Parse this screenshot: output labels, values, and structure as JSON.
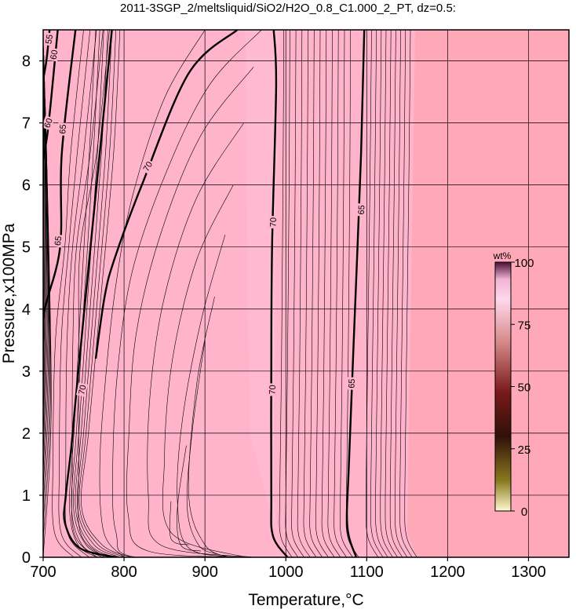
{
  "chart_data": {
    "type": "contour",
    "title": "2011-3SGP_2/meltsliquid/SiO2/H2O_0.8_C1.000_2_PT, dz=0.5:",
    "xlabel": "Temperature,°C",
    "ylabel": "Pressure,x100MPa",
    "xlim": [
      700,
      1350
    ],
    "ylim": [
      0,
      8.5
    ],
    "x_ticks": [
      "700",
      "800",
      "900",
      "1000",
      "1100",
      "1200",
      "1300"
    ],
    "y_ticks": [
      "0",
      "1",
      "2",
      "3",
      "4",
      "5",
      "6",
      "7",
      "8"
    ],
    "grid": true,
    "colorbar": {
      "label": "wt%",
      "range": [
        0,
        100
      ],
      "ticks": [
        "0",
        "25",
        "50",
        "75",
        "100"
      ],
      "placement": "right-middle"
    },
    "major_contours": [
      {
        "level": "70",
        "points": [
          [
            785,
            8.5
          ],
          [
            745,
            3.2
          ],
          [
            735,
            1.8
          ],
          [
            728,
            1.0
          ],
          [
            727,
            0.55
          ],
          [
            745,
            0.15
          ],
          [
            790,
            0
          ]
        ],
        "labels": [
          {
            "text": "70",
            "x": 748,
            "y": 2.7,
            "angle": -78
          }
        ]
      },
      {
        "level": "70",
        "points": [
          [
            940,
            8.5
          ],
          [
            880,
            7.8
          ],
          [
            822,
            6.0
          ],
          [
            788,
            4.8
          ],
          [
            776,
            4.2
          ],
          [
            765,
            3.2
          ]
        ],
        "labels": [
          {
            "text": "70",
            "x": 829,
            "y": 6.3,
            "angle": -60
          }
        ]
      },
      {
        "level": "70",
        "points": [
          [
            985,
            8.5
          ],
          [
            988,
            7.6
          ],
          [
            983,
            5.0
          ],
          [
            982,
            3.0
          ],
          [
            982,
            1.0
          ],
          [
            984,
            0.35
          ],
          [
            1002,
            0
          ]
        ],
        "labels": [
          {
            "text": "70",
            "x": 984,
            "y": 5.4,
            "angle": -88
          },
          {
            "text": "70",
            "x": 983,
            "y": 2.7,
            "angle": -88
          }
        ]
      },
      {
        "level": "65",
        "points": [
          [
            1097,
            8.5
          ],
          [
            1093,
            6.5
          ],
          [
            1084,
            3.5
          ],
          [
            1078,
            1.5
          ],
          [
            1076,
            0.5
          ],
          [
            1087,
            0
          ]
        ],
        "labels": [
          {
            "text": "65",
            "x": 1093,
            "y": 5.6,
            "angle": -87
          },
          {
            "text": "65",
            "x": 1081,
            "y": 2.8,
            "angle": -87
          }
        ]
      },
      {
        "level": "65",
        "points": [
          [
            740,
            8.5
          ],
          [
            723,
            6.5
          ],
          [
            721,
            5.0
          ],
          [
            702,
            4.0
          ],
          [
            700,
            3.5
          ]
        ],
        "labels": [
          {
            "text": "65",
            "x": 724,
            "y": 6.9,
            "angle": -85
          },
          {
            "text": "65",
            "x": 718,
            "y": 5.1,
            "angle": -82
          }
        ]
      },
      {
        "level": "60",
        "points": [
          [
            718,
            8.5
          ],
          [
            710,
            7.4
          ],
          [
            705,
            6.8
          ],
          [
            700,
            6.4
          ]
        ],
        "labels": [
          {
            "text": "60",
            "x": 713,
            "y": 8.1,
            "angle": -80
          },
          {
            "text": "60",
            "x": 706,
            "y": 7.0,
            "angle": -70
          }
        ]
      },
      {
        "level": "55",
        "points": [
          [
            708,
            8.5
          ],
          [
            704,
            8.0
          ],
          [
            700,
            7.7
          ]
        ],
        "labels": [
          {
            "text": "55",
            "x": 707,
            "y": 8.35,
            "angle": -80
          }
        ]
      }
    ]
  }
}
